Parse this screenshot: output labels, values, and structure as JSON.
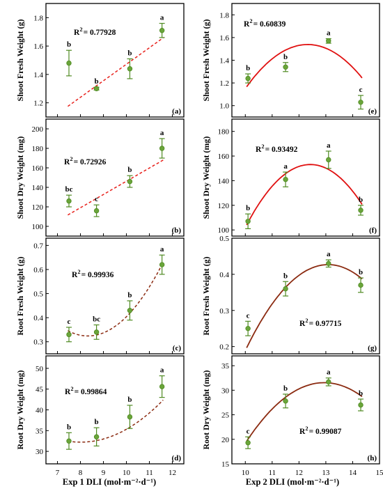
{
  "colors": {
    "marker": "#6aa53a",
    "marker_edge": "#4f8a22",
    "fit_exp1_shoot": "#e8201b",
    "fit_exp1_root": "#8b2a10",
    "fit_exp2_shoot": "#e01010",
    "fit_exp2_root": "#8b2a10"
  },
  "chart_data": [
    {
      "id": "a",
      "type": "scatter",
      "column": "left",
      "panel_label": "(a)",
      "ylabel": "Shoot Fresh Weight (g)",
      "x": [
        7.5,
        8.7,
        10.15,
        11.55
      ],
      "y": [
        1.48,
        1.3,
        1.44,
        1.71
      ],
      "err": [
        0.09,
        0.01,
        0.07,
        0.05
      ],
      "letters": [
        "b",
        "b",
        "b",
        "a"
      ],
      "fit": {
        "kind": "linear",
        "style": "dashed",
        "coef": [
          0.1164,
          0.3077
        ]
      },
      "r2_text": "0.77928",
      "xlim": [
        6.5,
        12.5
      ],
      "ylim": [
        1.1,
        1.9
      ],
      "yticks": [
        "1.2",
        "1.4",
        "1.6",
        "1.8"
      ],
      "ytick_values": [
        1.2,
        1.4,
        1.6,
        1.8
      ]
    },
    {
      "id": "b",
      "type": "scatter",
      "column": "left",
      "panel_label": "(b)",
      "ylabel": "Shoot Dry Weight (mg)",
      "x": [
        7.5,
        8.7,
        10.15,
        11.55
      ],
      "y": [
        126,
        116,
        146,
        180
      ],
      "err": [
        6,
        6,
        6,
        10
      ],
      "letters": [
        "bc",
        "c",
        "b",
        "a"
      ],
      "fit": {
        "kind": "linear",
        "style": "dashed",
        "coef": [
          13.58,
          10.45
        ]
      },
      "r2_text": "0.72926",
      "xlim": [
        6.5,
        12.5
      ],
      "ylim": [
        90,
        210
      ],
      "yticks": [
        "100",
        "120",
        "140",
        "160",
        "180",
        "200"
      ],
      "ytick_values": [
        100,
        120,
        140,
        160,
        180,
        200
      ]
    },
    {
      "id": "c",
      "type": "scatter",
      "column": "left",
      "panel_label": "(c)",
      "ylabel": "Root Fresh Weight (g)",
      "x": [
        7.5,
        8.7,
        10.15,
        11.55
      ],
      "y": [
        0.33,
        0.34,
        0.43,
        0.62
      ],
      "err": [
        0.03,
        0.03,
        0.04,
        0.04
      ],
      "letters": [
        "c",
        "bc",
        "b",
        "a"
      ],
      "fit": {
        "kind": "quadratic",
        "style": "dashed",
        "coef": [
          0.0285,
          -0.4746,
          2.2999
        ]
      },
      "r2_text": "0.99936",
      "xlim": [
        6.5,
        12.5
      ],
      "ylim": [
        0.25,
        0.73
      ],
      "yticks": [
        "0.3",
        "0.4",
        "0.5",
        "0.6",
        "0.7"
      ],
      "ytick_values": [
        0.3,
        0.4,
        0.5,
        0.6,
        0.7
      ]
    },
    {
      "id": "d",
      "type": "scatter",
      "column": "left",
      "panel_label": "(d)",
      "ylabel": "Root Dry Weight (mg)",
      "x": [
        7.5,
        8.7,
        10.15,
        11.55
      ],
      "y": [
        32.5,
        33.5,
        38.3,
        45.6
      ],
      "err": [
        2.0,
        2.2,
        2.8,
        2.6
      ],
      "letters": [
        "b",
        "b",
        "b",
        "a"
      ],
      "fit": {
        "kind": "quadratic",
        "style": "dashed",
        "coef": [
          0.7907,
          -12.68,
          83.06
        ]
      },
      "r2_text": "0.99864",
      "xlim": [
        6.5,
        12.5
      ],
      "ylim": [
        27,
        53
      ],
      "yticks": [
        "30",
        "35",
        "40",
        "45",
        "50"
      ],
      "ytick_values": [
        30,
        35,
        40,
        45,
        50
      ]
    },
    {
      "id": "e",
      "type": "scatter",
      "column": "right",
      "panel_label": "(e)",
      "ylabel": "Shoot Fresh Weight (g)",
      "x": [
        10.1,
        11.5,
        13.1,
        14.3
      ],
      "y": [
        1.24,
        1.34,
        1.57,
        1.03
      ],
      "err": [
        0.04,
        0.04,
        0.02,
        0.06
      ],
      "letters": [
        "b",
        "b",
        "a",
        "c"
      ],
      "fit": {
        "kind": "quadratic",
        "style": "solid",
        "coef": [
          -0.0718,
          1.77,
          -9.37
        ]
      },
      "r2_text": "0.60839",
      "xlim": [
        9.5,
        15
      ],
      "ylim": [
        0.9,
        1.9
      ],
      "yticks": [
        "1.0",
        "1.2",
        "1.4",
        "1.6",
        "1.8"
      ],
      "ytick_values": [
        1.0,
        1.2,
        1.4,
        1.6,
        1.8
      ]
    },
    {
      "id": "f",
      "type": "scatter",
      "column": "right",
      "panel_label": "(f)",
      "ylabel": "Shoot Dry Weight (mg)",
      "x": [
        10.1,
        11.5,
        13.1,
        14.3
      ],
      "y": [
        107,
        141,
        157,
        116
      ],
      "err": [
        6,
        6,
        7,
        4
      ],
      "letters": [
        "b",
        "a",
        "a",
        "b"
      ],
      "fit": {
        "kind": "quadratic",
        "style": "solid",
        "coef": [
          -8.71,
          216.4,
          -1191
        ]
      },
      "r2_text": "0.93492",
      "xlim": [
        9.5,
        15
      ],
      "ylim": [
        95,
        190
      ],
      "yticks": [
        "100",
        "120",
        "140",
        "160",
        "180"
      ],
      "ytick_values": [
        100,
        120,
        140,
        160,
        180
      ]
    },
    {
      "id": "g",
      "type": "scatter",
      "column": "right",
      "panel_label": "(g)",
      "ylabel": "Root Fresh Weight (g)",
      "x": [
        10.1,
        11.5,
        13.1,
        14.3
      ],
      "y": [
        0.25,
        0.36,
        0.43,
        0.37
      ],
      "err": [
        0.02,
        0.02,
        0.01,
        0.02
      ],
      "letters": [
        "c",
        "b",
        "a",
        "b"
      ],
      "fit": {
        "kind": "quadratic",
        "style": "solid",
        "coef": [
          -0.0249,
          0.6519,
          -3.84
        ]
      },
      "r2_text": "0.97715",
      "xlim": [
        9.5,
        15
      ],
      "ylim": [
        0.18,
        0.5
      ],
      "yticks": [
        "0.2",
        "0.3",
        "0.4",
        "0.5"
      ],
      "ytick_values": [
        0.2,
        0.3,
        0.4,
        0.5
      ]
    },
    {
      "id": "h",
      "type": "scatter",
      "column": "right",
      "panel_label": "(h)",
      "ylabel": "Root Dry Weight (mg)",
      "x": [
        10.1,
        11.5,
        13.1,
        14.3
      ],
      "y": [
        19.3,
        27.8,
        31.7,
        27.0
      ],
      "err": [
        1.2,
        1.4,
        0.8,
        1.2
      ],
      "letters": [
        "c",
        "b",
        "a",
        "b"
      ],
      "fit": {
        "kind": "quadratic",
        "style": "solid",
        "coef": [
          -1.426,
          36.91,
          -207.3
        ]
      },
      "r2_text": "0.99087",
      "xlim": [
        9.5,
        15
      ],
      "ylim": [
        15,
        37
      ],
      "yticks": [
        "15",
        "20",
        "25",
        "30",
        "35"
      ],
      "ytick_values": [
        15,
        20,
        25,
        30,
        35
      ]
    }
  ],
  "x_axes": {
    "left": {
      "label": "Exp 1  DLI (mol·m⁻²·d⁻¹)",
      "ticks": [
        "7",
        "8",
        "9",
        "10",
        "11",
        "12"
      ],
      "tick_values": [
        7,
        8,
        9,
        10,
        11,
        12
      ]
    },
    "right": {
      "label": "Exp 2  DLI (mol·m⁻²·d⁻¹)",
      "ticks": [
        "10",
        "11",
        "12",
        "13",
        "14",
        "15"
      ],
      "tick_values": [
        10,
        11,
        12,
        13,
        14,
        15
      ]
    }
  }
}
